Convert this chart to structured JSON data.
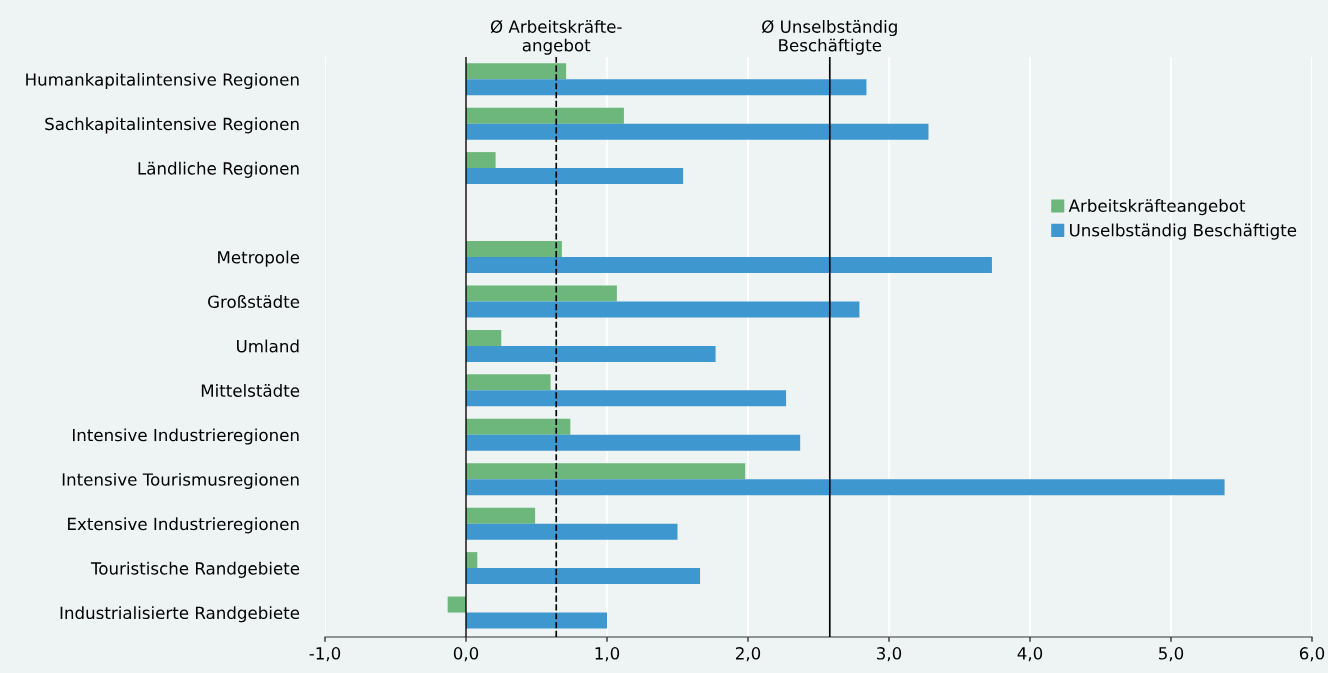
{
  "chart_data": {
    "type": "bar",
    "orientation": "horizontal",
    "categories": [
      "Humankapitalintensive Regionen",
      "Sachkapitalintensive Regionen",
      "Ländliche Regionen",
      null,
      "Metropole",
      "Großstädte",
      "Umland",
      "Mittelstädte",
      "Intensive Industrieregionen",
      "Intensive Tourismusregionen",
      "Extensive Industrieregionen",
      "Touristische Randgebiete",
      "Industrialisierte Randgebiete"
    ],
    "series": [
      {
        "name": "Arbeitskräfteangebot",
        "color": "#6db77d",
        "values": [
          0.71,
          1.12,
          0.21,
          null,
          0.68,
          1.07,
          0.25,
          0.6,
          0.74,
          1.98,
          0.49,
          0.08,
          -0.13
        ]
      },
      {
        "name": "Unselbständig Beschäftigte",
        "color": "#3f97cf",
        "values": [
          2.84,
          3.28,
          1.54,
          null,
          3.73,
          2.79,
          1.77,
          2.27,
          2.37,
          5.38,
          1.5,
          1.66,
          1.0
        ]
      }
    ],
    "xlim": [
      -1,
      6
    ],
    "xticks": [
      {
        "value": -1,
        "label": "-1,0"
      },
      {
        "value": 0,
        "label": "0,0"
      },
      {
        "value": 1,
        "label": "1,0"
      },
      {
        "value": 2,
        "label": "2,0"
      },
      {
        "value": 3,
        "label": "3,0"
      },
      {
        "value": 4,
        "label": "4,0"
      },
      {
        "value": 5,
        "label": "5,0"
      },
      {
        "value": 6,
        "label": "6,0"
      }
    ],
    "ref_lines": [
      {
        "axis": "x",
        "value": 0.64,
        "label": "Ø Arbeitskräfte-\nangebot",
        "color": "#000000",
        "line_style": "dashed"
      },
      {
        "axis": "x",
        "value": 2.58,
        "label": "Ø Unselbständig\nBeschäftigte",
        "color": "#000000",
        "line_style": "solid"
      }
    ],
    "grid": "x",
    "legend": "right"
  }
}
